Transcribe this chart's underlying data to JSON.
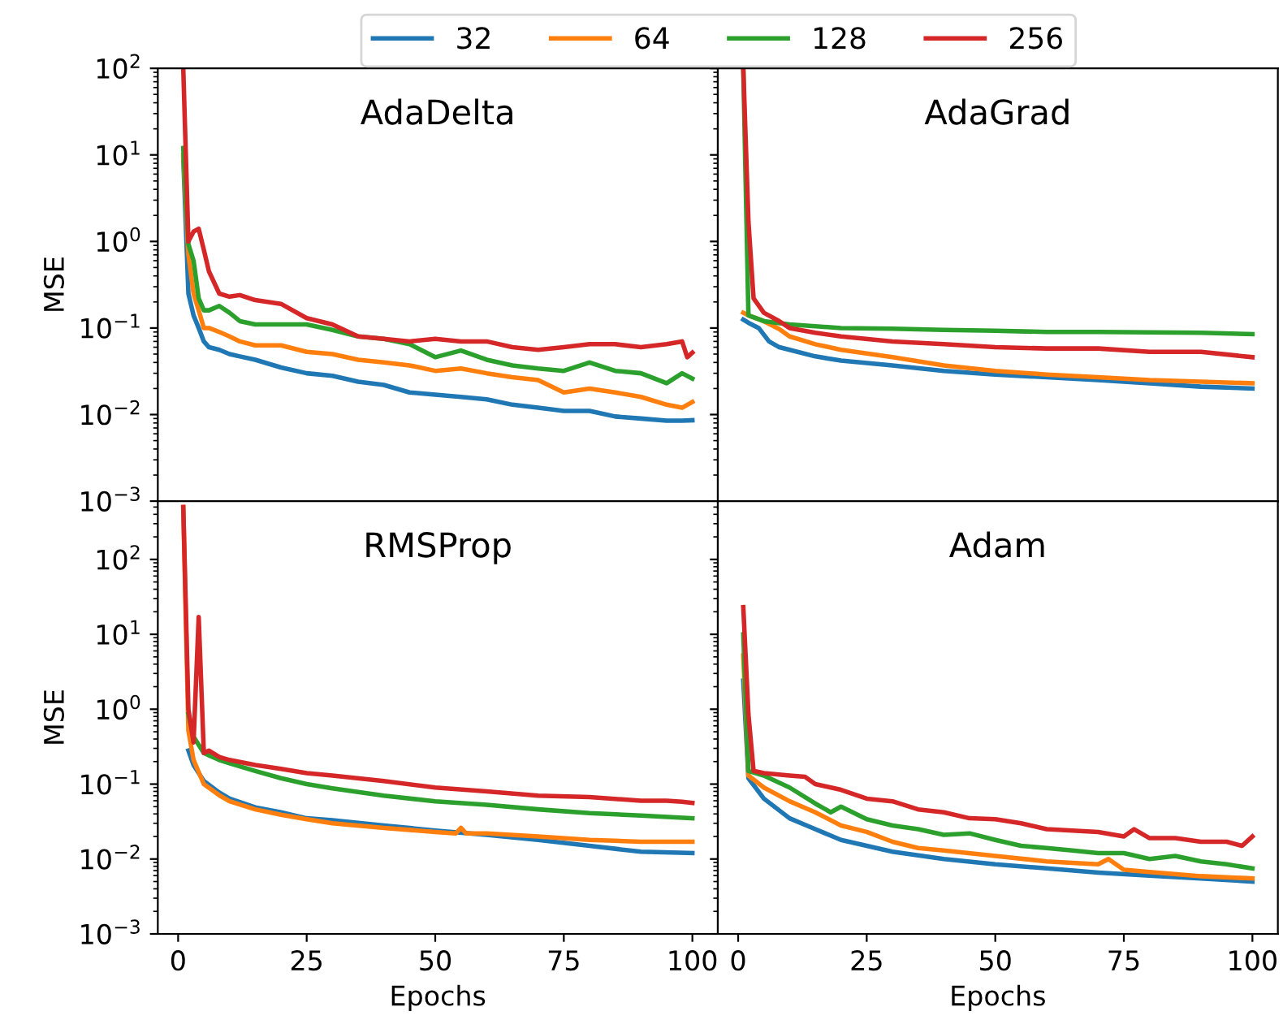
{
  "chart_data": [
    {
      "type": "line",
      "title": "AdaDelta",
      "ylabel": "MSE",
      "log": "y",
      "xlim": [
        -3.95,
        104.95
      ],
      "xticks": [
        0,
        25,
        50,
        75,
        100
      ],
      "ylim": [
        0.001,
        100
      ],
      "yticks": [
        {
          "value": 0.001,
          "label": "10$^{−3}$"
        },
        {
          "value": 0.01,
          "label": "10$^{−2}$"
        },
        {
          "value": 0.1,
          "label": "10$^{−1}$"
        },
        {
          "value": 1,
          "label": "10$^{0}$"
        },
        {
          "value": 10,
          "label": "10$^{1}$"
        },
        {
          "value": 100,
          "label": "10$^{2}$"
        }
      ],
      "tick_labels": "y",
      "legend": "top",
      "grid": false,
      "line_style": "solid",
      "marker": "none",
      "series": [
        {
          "name": "32",
          "color": "#1f77b4",
          "x": [
            1,
            2,
            3,
            4,
            5,
            6,
            8,
            10,
            12,
            15,
            20,
            25,
            30,
            35,
            40,
            45,
            50,
            55,
            60,
            65,
            70,
            75,
            80,
            85,
            90,
            95,
            98,
            100
          ],
          "values": [
            9.3,
            0.25,
            0.14,
            0.1,
            0.07,
            0.06,
            0.056,
            0.05,
            0.047,
            0.043,
            0.035,
            0.03,
            0.028,
            0.024,
            0.022,
            0.018,
            0.017,
            0.016,
            0.015,
            0.013,
            0.012,
            0.011,
            0.011,
            0.0095,
            0.009,
            0.0085,
            0.0085,
            0.0086
          ]
        },
        {
          "name": "64",
          "color": "#ff7f0e",
          "x": [
            1,
            2,
            3,
            4,
            5,
            6,
            8,
            10,
            12,
            15,
            20,
            25,
            30,
            35,
            40,
            45,
            50,
            55,
            60,
            65,
            70,
            75,
            80,
            85,
            90,
            95,
            98,
            100
          ],
          "values": [
            10,
            0.7,
            0.25,
            0.16,
            0.1,
            0.1,
            0.09,
            0.08,
            0.07,
            0.063,
            0.063,
            0.053,
            0.05,
            0.043,
            0.04,
            0.037,
            0.032,
            0.034,
            0.03,
            0.027,
            0.025,
            0.018,
            0.02,
            0.018,
            0.016,
            0.013,
            0.012,
            0.014
          ]
        },
        {
          "name": "128",
          "color": "#2ca02c",
          "x": [
            1,
            2,
            3,
            4,
            5,
            6,
            8,
            10,
            12,
            15,
            20,
            25,
            30,
            35,
            40,
            45,
            50,
            55,
            60,
            65,
            70,
            75,
            80,
            85,
            90,
            95,
            98,
            100
          ],
          "values": [
            12,
            0.93,
            0.6,
            0.22,
            0.16,
            0.16,
            0.18,
            0.15,
            0.12,
            0.11,
            0.11,
            0.11,
            0.095,
            0.08,
            0.075,
            0.065,
            0.046,
            0.055,
            0.043,
            0.037,
            0.034,
            0.032,
            0.04,
            0.032,
            0.03,
            0.023,
            0.03,
            0.026
          ]
        },
        {
          "name": "256",
          "color": "#d62728",
          "x": [
            1,
            2,
            3,
            4,
            5,
            6,
            8,
            10,
            12,
            15,
            20,
            25,
            30,
            35,
            40,
            45,
            50,
            55,
            60,
            65,
            70,
            75,
            80,
            85,
            90,
            95,
            98,
            99,
            100
          ],
          "values": [
            100,
            1.0,
            1.3,
            1.4,
            0.8,
            0.45,
            0.25,
            0.23,
            0.24,
            0.21,
            0.19,
            0.13,
            0.11,
            0.08,
            0.075,
            0.07,
            0.075,
            0.07,
            0.07,
            0.06,
            0.056,
            0.06,
            0.065,
            0.065,
            0.06,
            0.065,
            0.07,
            0.046,
            0.052
          ]
        }
      ]
    },
    {
      "type": "line",
      "title": "AdaGrad",
      "log": "y",
      "xlim": [
        -3.95,
        104.95
      ],
      "xticks": [
        0,
        25,
        50,
        75,
        100
      ],
      "ylim": [
        0.001,
        100
      ],
      "yticks": [
        {
          "value": 0.001,
          "label": null
        },
        {
          "value": 0.01,
          "label": null
        },
        {
          "value": 0.1,
          "label": null
        },
        {
          "value": 1,
          "label": null
        },
        {
          "value": 10,
          "label": null
        },
        {
          "value": 100,
          "label": null
        }
      ],
      "tick_labels": false,
      "grid": false,
      "line_style": "solid",
      "marker": "none",
      "series": [
        {
          "color": "#1f77b4",
          "x": [
            1,
            2,
            4,
            6,
            8,
            10,
            15,
            20,
            30,
            40,
            50,
            60,
            70,
            80,
            90,
            100
          ],
          "values": [
            0.125,
            0.115,
            0.1,
            0.07,
            0.06,
            0.056,
            0.047,
            0.042,
            0.037,
            0.032,
            0.029,
            0.027,
            0.025,
            0.023,
            0.021,
            0.02
          ]
        },
        {
          "color": "#ff7f0e",
          "x": [
            1,
            2,
            5,
            8,
            10,
            15,
            20,
            30,
            40,
            50,
            60,
            70,
            80,
            90,
            100
          ],
          "values": [
            0.15,
            0.14,
            0.12,
            0.097,
            0.08,
            0.065,
            0.056,
            0.046,
            0.037,
            0.032,
            0.029,
            0.027,
            0.025,
            0.024,
            0.023
          ]
        },
        {
          "color": "#2ca02c",
          "x": [
            1,
            2,
            5,
            10,
            20,
            30,
            40,
            50,
            60,
            70,
            80,
            90,
            100
          ],
          "values": [
            100,
            0.14,
            0.12,
            0.11,
            0.1,
            0.098,
            0.095,
            0.093,
            0.09,
            0.09,
            0.089,
            0.088,
            0.085
          ]
        },
        {
          "color": "#d62728",
          "x": [
            1,
            2,
            3,
            5,
            8,
            10,
            15,
            20,
            30,
            40,
            50,
            60,
            70,
            80,
            90,
            100
          ],
          "values": [
            100,
            1.7,
            0.22,
            0.15,
            0.12,
            0.1,
            0.088,
            0.08,
            0.07,
            0.065,
            0.06,
            0.058,
            0.058,
            0.053,
            0.053,
            0.046
          ]
        }
      ]
    },
    {
      "type": "line",
      "title": "RMSProp",
      "ylabel": "MSE",
      "xlabel": "Epochs",
      "log": "y",
      "xlim": [
        -3.95,
        104.95
      ],
      "xticks": [
        0,
        25,
        50,
        75,
        100
      ],
      "ylim": [
        0.001,
        600
      ],
      "yticks": [
        {
          "value": 0.001,
          "label": "10$^{−3}$"
        },
        {
          "value": 0.01,
          "label": "10$^{−2}$"
        },
        {
          "value": 0.1,
          "label": "10$^{−1}$"
        },
        {
          "value": 1,
          "label": "10$^{0}$"
        },
        {
          "value": 10,
          "label": "10$^{1}$"
        },
        {
          "value": 100,
          "label": "10$^{2}$"
        }
      ],
      "grid": false,
      "line_style": "solid",
      "marker": "none",
      "series": [
        {
          "color": "#1f77b4",
          "x": [
            2,
            3,
            5,
            8,
            10,
            15,
            20,
            25,
            30,
            40,
            50,
            60,
            70,
            80,
            90,
            100
          ],
          "values": [
            0.28,
            0.18,
            0.11,
            0.077,
            0.064,
            0.049,
            0.042,
            0.035,
            0.033,
            0.028,
            0.024,
            0.021,
            0.018,
            0.015,
            0.0125,
            0.012
          ]
        },
        {
          "color": "#ff7f0e",
          "x": [
            1,
            2,
            3,
            5,
            8,
            10,
            15,
            20,
            25,
            30,
            40,
            50,
            54,
            55,
            56,
            60,
            70,
            80,
            90,
            100
          ],
          "values": [
            500,
            0.52,
            0.21,
            0.1,
            0.071,
            0.059,
            0.046,
            0.039,
            0.034,
            0.03,
            0.026,
            0.023,
            0.022,
            0.026,
            0.022,
            0.022,
            0.02,
            0.018,
            0.017,
            0.017
          ]
        },
        {
          "color": "#2ca02c",
          "x": [
            2,
            3,
            5,
            8,
            10,
            15,
            20,
            25,
            30,
            40,
            50,
            60,
            70,
            80,
            90,
            100
          ],
          "values": [
            0.86,
            0.43,
            0.26,
            0.21,
            0.19,
            0.15,
            0.12,
            0.1,
            0.088,
            0.07,
            0.059,
            0.053,
            0.046,
            0.041,
            0.038,
            0.035
          ]
        },
        {
          "color": "#d62728",
          "x": [
            1,
            2,
            3,
            4,
            5,
            6,
            8,
            10,
            15,
            20,
            25,
            30,
            40,
            50,
            60,
            70,
            80,
            90,
            95,
            98,
            100
          ],
          "values": [
            500,
            1.0,
            0.36,
            17,
            0.26,
            0.28,
            0.23,
            0.21,
            0.18,
            0.16,
            0.14,
            0.13,
            0.11,
            0.09,
            0.08,
            0.07,
            0.067,
            0.06,
            0.06,
            0.058,
            0.056
          ]
        }
      ]
    },
    {
      "type": "line",
      "title": "Adam",
      "xlabel": "Epochs",
      "log": "y",
      "xlim": [
        -3.95,
        104.95
      ],
      "xticks": [
        0,
        25,
        50,
        75,
        100
      ],
      "ylim": [
        0.001,
        600
      ],
      "yticks": [
        {
          "value": 0.001,
          "label": null
        },
        {
          "value": 0.01,
          "label": null
        },
        {
          "value": 0.1,
          "label": null
        },
        {
          "value": 1,
          "label": null
        },
        {
          "value": 10,
          "label": null
        },
        {
          "value": 100,
          "label": null
        }
      ],
      "tick_labels": "x",
      "grid": false,
      "line_style": "solid",
      "marker": "none",
      "series": [
        {
          "color": "#1f77b4",
          "x": [
            1,
            2,
            5,
            10,
            15,
            20,
            25,
            30,
            40,
            50,
            60,
            70,
            80,
            90,
            100
          ],
          "values": [
            2.4,
            0.12,
            0.064,
            0.035,
            0.025,
            0.018,
            0.015,
            0.0125,
            0.01,
            0.0085,
            0.0075,
            0.0066,
            0.006,
            0.0055,
            0.005
          ]
        },
        {
          "color": "#ff7f0e",
          "x": [
            1,
            2,
            5,
            10,
            15,
            20,
            25,
            30,
            35,
            40,
            50,
            60,
            70,
            72,
            75,
            80,
            90,
            100
          ],
          "values": [
            5.2,
            0.13,
            0.09,
            0.059,
            0.042,
            0.028,
            0.023,
            0.017,
            0.014,
            0.013,
            0.011,
            0.0093,
            0.0085,
            0.01,
            0.0072,
            0.0067,
            0.0059,
            0.0055
          ]
        },
        {
          "color": "#2ca02c",
          "x": [
            1,
            2,
            5,
            10,
            15,
            18,
            20,
            25,
            30,
            35,
            40,
            45,
            50,
            55,
            60,
            65,
            70,
            75,
            80,
            85,
            90,
            95,
            100
          ],
          "values": [
            10,
            0.15,
            0.13,
            0.09,
            0.055,
            0.042,
            0.05,
            0.034,
            0.028,
            0.025,
            0.021,
            0.022,
            0.018,
            0.015,
            0.014,
            0.013,
            0.012,
            0.012,
            0.01,
            0.011,
            0.0093,
            0.0085,
            0.0075
          ]
        },
        {
          "color": "#d62728",
          "x": [
            1,
            2,
            3,
            5,
            10,
            13,
            15,
            20,
            25,
            30,
            35,
            40,
            45,
            50,
            55,
            60,
            65,
            70,
            75,
            77,
            80,
            85,
            90,
            95,
            98,
            100
          ],
          "values": [
            23,
            0.85,
            0.15,
            0.14,
            0.13,
            0.125,
            0.1,
            0.084,
            0.064,
            0.059,
            0.046,
            0.042,
            0.035,
            0.034,
            0.03,
            0.025,
            0.024,
            0.023,
            0.02,
            0.025,
            0.019,
            0.019,
            0.017,
            0.017,
            0.015,
            0.02
          ]
        }
      ]
    }
  ]
}
